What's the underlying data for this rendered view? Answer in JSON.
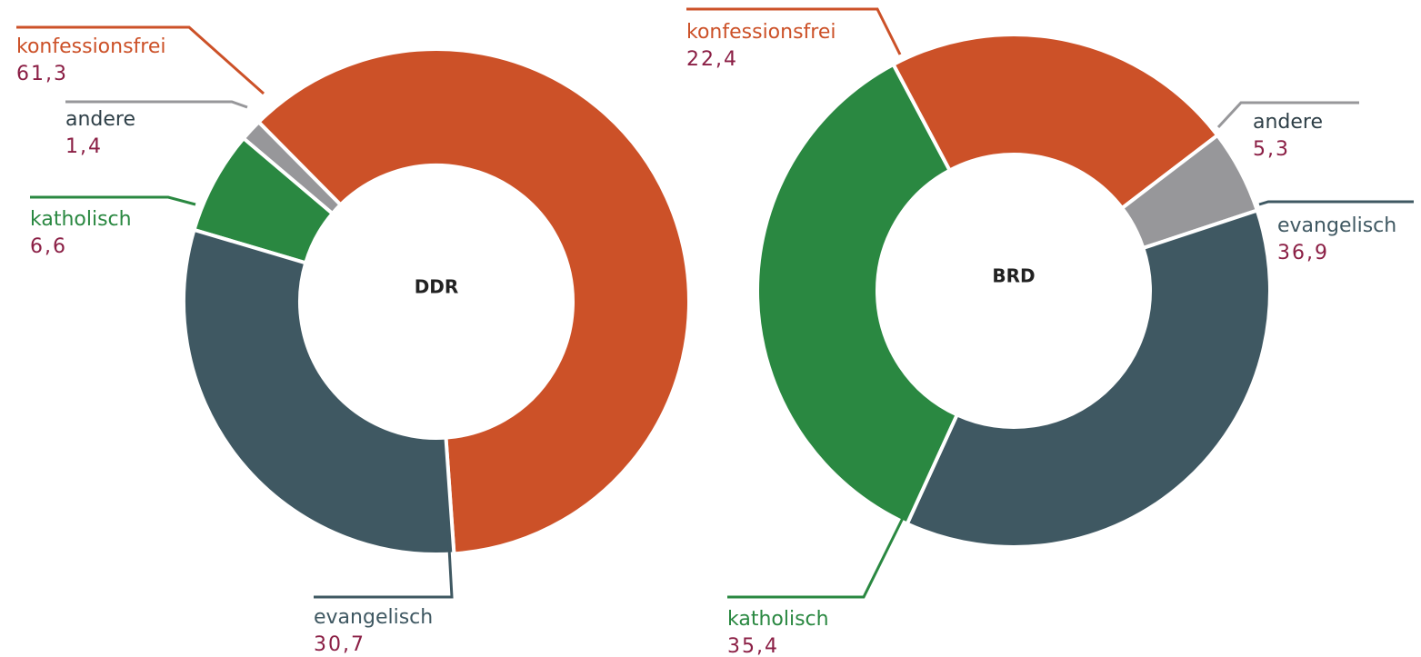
{
  "chart_data": [
    {
      "type": "pie",
      "title": "DDR",
      "categories": [
        "konfessionsfrei",
        "andere",
        "katholisch",
        "evangelisch"
      ],
      "values": [
        61.3,
        1.4,
        6.6,
        30.7
      ],
      "value_labels": [
        "61,3",
        "1,4",
        "6,6",
        "30,7"
      ],
      "colors": [
        "#cc5128",
        "#97979a",
        "#2a8841",
        "#3f5862"
      ]
    },
    {
      "type": "pie",
      "title": "BRD",
      "categories": [
        "konfessionsfrei",
        "andere",
        "evangelisch",
        "katholisch"
      ],
      "values": [
        22.4,
        5.3,
        36.9,
        35.4
      ],
      "value_labels": [
        "22,4",
        "5,3",
        "36,9",
        "35,4"
      ],
      "colors": [
        "#cc5128",
        "#97979a",
        "#3f5862",
        "#2a8841"
      ]
    }
  ]
}
